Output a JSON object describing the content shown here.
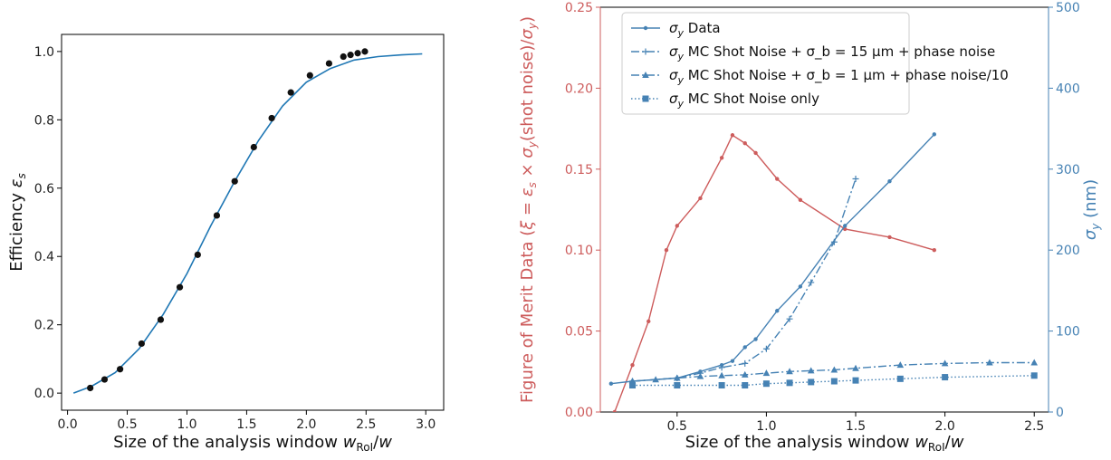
{
  "chart_data": [
    {
      "type": "scatter",
      "xlabel": "Size of the analysis window  w_RoI/w",
      "ylabel": "Efficiency ε_s",
      "xlim": [
        -0.05,
        3.15
      ],
      "ylim": [
        -0.05,
        1.05
      ],
      "xticks": [
        "0.0",
        "0.5",
        "1.0",
        "1.5",
        "2.0",
        "2.5",
        "3.0"
      ],
      "yticks": [
        "0.0",
        "0.2",
        "0.4",
        "0.6",
        "0.8",
        "1.0"
      ],
      "grid": false,
      "colors": {
        "points": "#111111",
        "fit": "#1f77b4"
      },
      "points": {
        "x": [
          0.19,
          0.31,
          0.44,
          0.62,
          0.78,
          0.94,
          1.09,
          1.25,
          1.4,
          1.56,
          1.71,
          1.87,
          2.03,
          2.19,
          2.31,
          2.37,
          2.43,
          2.49
        ],
        "y": [
          0.015,
          0.04,
          0.07,
          0.145,
          0.215,
          0.31,
          0.405,
          0.52,
          0.62,
          0.72,
          0.805,
          0.88,
          0.93,
          0.965,
          0.985,
          0.99,
          0.995,
          1.0
        ]
      },
      "fit": {
        "x": [
          0.05,
          0.2,
          0.4,
          0.6,
          0.8,
          1.0,
          1.2,
          1.4,
          1.6,
          1.8,
          2.0,
          2.2,
          2.4,
          2.6,
          2.8,
          2.97
        ],
        "y": [
          0.0,
          0.02,
          0.06,
          0.13,
          0.23,
          0.35,
          0.49,
          0.62,
          0.74,
          0.84,
          0.91,
          0.95,
          0.975,
          0.985,
          0.99,
          0.993
        ]
      }
    },
    {
      "type": "line",
      "xlabel": "Size of the analysis window  w_RoI/w",
      "ylabel_left": "Figure of Merit Data  (ξ = ε_s × σ_y(shot noise)/σ_y)",
      "ylabel_right": "σ_y (nm)",
      "xlim": [
        0.07,
        2.58
      ],
      "ylim_left": [
        0,
        0.25
      ],
      "ylim_right": [
        0,
        500
      ],
      "xticks": [
        "0.5",
        "1.0",
        "1.5",
        "2.0",
        "2.5"
      ],
      "yticks_left": [
        "0.00",
        "0.05",
        "0.10",
        "0.15",
        "0.20",
        "0.25"
      ],
      "yticks_right": [
        "0",
        "100",
        "200",
        "300",
        "400",
        "500"
      ],
      "legend_position": "top",
      "grid": false,
      "colors": {
        "left_axis": "#cd5c5c",
        "right_axis": "#4682b4"
      },
      "legend": [
        {
          "main": "σ",
          "sub": "y",
          "rest": " Data",
          "style": "solid",
          "marker": "dot"
        },
        {
          "main": "σ",
          "sub": "y",
          "rest": " MC Shot Noise + σ_b = 15 μm + phase noise",
          "style": "dashdot",
          "marker": "plus"
        },
        {
          "main": "σ",
          "sub": "y",
          "rest": " MC Shot Noise + σ_b = 1 μm + phase noise/10",
          "style": "dashdot",
          "marker": "triangle"
        },
        {
          "main": "σ",
          "sub": "y",
          "rest": " MC Shot Noise only",
          "style": "dotted",
          "marker": "square"
        }
      ],
      "series": [
        {
          "axis": "left",
          "color": "#cd5c5c",
          "style": "solid",
          "marker": "dot",
          "x": [
            0.15,
            0.25,
            0.34,
            0.44,
            0.5,
            0.63,
            0.75,
            0.81,
            0.88,
            0.94,
            1.06,
            1.19,
            1.44,
            1.69,
            1.94
          ],
          "y": [
            0.0,
            0.029,
            0.056,
            0.1,
            0.115,
            0.132,
            0.157,
            0.171,
            0.166,
            0.16,
            0.144,
            0.131,
            0.113,
            0.108,
            0.1
          ]
        },
        {
          "axis": "right",
          "color": "#4682b4",
          "style": "solid",
          "marker": "dot",
          "x": [
            0.13,
            0.25,
            0.5,
            0.63,
            0.75,
            0.81,
            0.88,
            0.94,
            1.06,
            1.19,
            1.44,
            1.69,
            1.94
          ],
          "y": [
            35,
            38,
            42,
            50,
            58,
            63,
            80,
            90,
            125,
            155,
            230,
            285,
            343
          ]
        },
        {
          "axis": "right",
          "color": "#4682b4",
          "style": "dashdot",
          "marker": "plus",
          "x": [
            0.25,
            0.5,
            0.63,
            0.75,
            0.88,
            1.0,
            1.13,
            1.25,
            1.38,
            1.5
          ],
          "y": [
            38,
            42,
            48,
            55,
            60,
            78,
            115,
            160,
            210,
            288
          ]
        },
        {
          "axis": "right",
          "color": "#4682b4",
          "style": "dashdot",
          "marker": "triangle",
          "x": [
            0.25,
            0.38,
            0.5,
            0.63,
            0.75,
            0.88,
            1.0,
            1.13,
            1.25,
            1.38,
            1.5,
            1.75,
            2.0,
            2.25,
            2.5
          ],
          "y": [
            38,
            40,
            42,
            44,
            45,
            46,
            48,
            50,
            51,
            52,
            54,
            58,
            60,
            61,
            61
          ]
        },
        {
          "axis": "right",
          "color": "#4682b4",
          "style": "dotted",
          "marker": "square",
          "x": [
            0.25,
            0.5,
            0.75,
            0.88,
            1.0,
            1.13,
            1.25,
            1.38,
            1.5,
            1.75,
            2.0,
            2.5
          ],
          "y": [
            33,
            33,
            33,
            33,
            35,
            36,
            37,
            38,
            39,
            41,
            43,
            45
          ]
        }
      ]
    }
  ]
}
